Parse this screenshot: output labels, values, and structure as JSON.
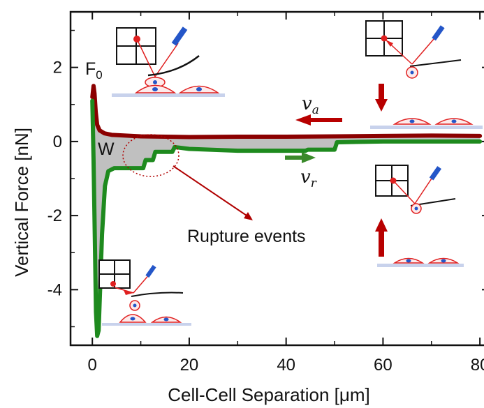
{
  "chart_data": {
    "type": "line",
    "title": "",
    "xlabel": "Cell-Cell Separation [μm]",
    "ylabel": "Vertical Force [nN]",
    "xlim": [
      -4.5,
      82
    ],
    "ylim": [
      -5.5,
      3.5
    ],
    "xticks": [
      0,
      20,
      40,
      60,
      80
    ],
    "yticks": [
      -4,
      -2,
      0,
      2
    ],
    "xtick_labels": [
      "0",
      "20",
      "40",
      "60",
      "80"
    ],
    "ytick_labels": [
      "-4",
      "-2",
      "0",
      "2"
    ],
    "grid": false,
    "legend": "none",
    "colors": {
      "approach": "#8b0000",
      "retract": "#1e8a1e",
      "work_fill": "#c0c0c0",
      "rupture_annotation": "#b00000",
      "scheme_red": "#e02020",
      "scheme_blue": "#2456c8"
    },
    "series": [
      {
        "role": "approach",
        "points": [
          [
            0.0,
            1.2
          ],
          [
            0.25,
            1.5
          ],
          [
            0.45,
            1.3
          ],
          [
            0.7,
            0.8
          ],
          [
            1.0,
            0.45
          ],
          [
            1.5,
            0.3
          ],
          [
            2.5,
            0.22
          ],
          [
            4.0,
            0.18
          ],
          [
            10.0,
            0.14
          ],
          [
            20.0,
            0.12
          ],
          [
            30.0,
            0.13
          ],
          [
            40.0,
            0.13
          ],
          [
            50.0,
            0.14
          ],
          [
            60.0,
            0.15
          ],
          [
            70.0,
            0.16
          ],
          [
            80.0,
            0.15
          ]
        ]
      },
      {
        "role": "retract",
        "points": [
          [
            0.0,
            1.1
          ],
          [
            0.25,
            -0.5
          ],
          [
            0.5,
            -2.5
          ],
          [
            0.75,
            -4.6
          ],
          [
            1.0,
            -5.25
          ],
          [
            1.3,
            -5.1
          ],
          [
            1.6,
            -4.0
          ],
          [
            2.0,
            -2.5
          ],
          [
            2.6,
            -1.2
          ],
          [
            3.3,
            -0.8
          ],
          [
            4.5,
            -0.72
          ],
          [
            10.5,
            -0.72
          ],
          [
            11.0,
            -0.5
          ],
          [
            12.5,
            -0.5
          ],
          [
            13.0,
            -0.28
          ],
          [
            16.5,
            -0.28
          ],
          [
            17.0,
            -0.15
          ],
          [
            20.0,
            -0.2
          ],
          [
            30.0,
            -0.25
          ],
          [
            44.0,
            -0.25
          ],
          [
            44.5,
            -0.22
          ],
          [
            50.0,
            -0.22
          ],
          [
            50.5,
            -0.02
          ],
          [
            60.0,
            0.0
          ],
          [
            80.0,
            0.0
          ]
        ]
      }
    ],
    "annotations": {
      "f0_label": "F",
      "f0_sub": "0",
      "w_label": "W",
      "rupture_label": "Rupture events",
      "va_label": "v",
      "va_sub": "a",
      "vr_label": "v",
      "vr_sub": "r"
    }
  }
}
